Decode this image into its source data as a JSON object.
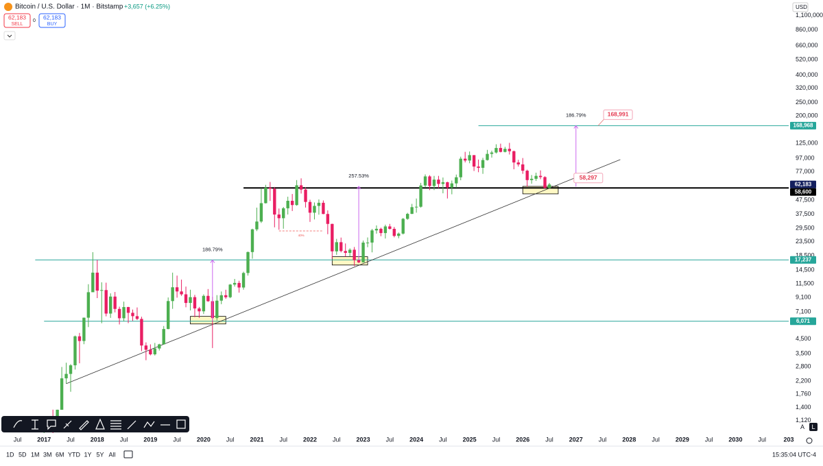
{
  "header": {
    "symbol": "Bitcoin / U.S. Dollar · 1M · Bitstamp",
    "change": "+3,657 (+6.25%)",
    "sell_price": "62,183",
    "sell": "SELL",
    "spread": "0",
    "buy_price": "62,183",
    "buy": "BUY",
    "currency": "USD"
  },
  "chart_data": {
    "type": "candlestick",
    "log_scale": true,
    "grid": false,
    "up_color": "#4caf50",
    "down_color": "#e91e63",
    "xlim": [
      "2016-06",
      "2031-01"
    ],
    "ylim": [
      906,
      1352000
    ],
    "xticks": [
      {
        "value": "2016-07",
        "label": "Jul"
      },
      {
        "value": "2017-01",
        "label": "2017"
      },
      {
        "value": "2017-07",
        "label": "Jul"
      },
      {
        "value": "2018-01",
        "label": "2018"
      },
      {
        "value": "2018-07",
        "label": "Jul"
      },
      {
        "value": "2019-01",
        "label": "2019"
      },
      {
        "value": "2019-07",
        "label": "Jul"
      },
      {
        "value": "2020-01",
        "label": "2020"
      },
      {
        "value": "2020-07",
        "label": "Jul"
      },
      {
        "value": "2021-01",
        "label": "2021"
      },
      {
        "value": "2021-07",
        "label": "Jul"
      },
      {
        "value": "2022-01",
        "label": "2022"
      },
      {
        "value": "2022-07",
        "label": "Jul"
      },
      {
        "value": "2023-01",
        "label": "2023"
      },
      {
        "value": "2023-07",
        "label": "Jul"
      },
      {
        "value": "2024-01",
        "label": "2024"
      },
      {
        "value": "2024-07",
        "label": "Jul"
      },
      {
        "value": "2025-01",
        "label": "2025"
      },
      {
        "value": "2025-07",
        "label": "Jul"
      },
      {
        "value": "2026-01",
        "label": "2026"
      },
      {
        "value": "2026-07",
        "label": "Jul"
      },
      {
        "value": "2027-01",
        "label": "2027"
      },
      {
        "value": "2027-07",
        "label": "Jul"
      },
      {
        "value": "2028-01",
        "label": "2028"
      },
      {
        "value": "2028-07",
        "label": "Jul"
      },
      {
        "value": "2029-01",
        "label": "2029"
      },
      {
        "value": "2029-07",
        "label": "Jul"
      },
      {
        "value": "2030-01",
        "label": "2030"
      },
      {
        "value": "2030-07",
        "label": "Jul"
      },
      {
        "value": "2031-01",
        "label": "203"
      }
    ],
    "yticks": [
      {
        "value": 1100000,
        "label": "1,100,000"
      },
      {
        "value": 860000,
        "label": "860,000"
      },
      {
        "value": 660000,
        "label": "660,000"
      },
      {
        "value": 520000,
        "label": "520,000"
      },
      {
        "value": 400000,
        "label": "400,000"
      },
      {
        "value": 320000,
        "label": "320,000"
      },
      {
        "value": 250000,
        "label": "250,000"
      },
      {
        "value": 200000,
        "label": "200,000"
      },
      {
        "value": 125000,
        "label": "125,000"
      },
      {
        "value": 97000,
        "label": "97,000"
      },
      {
        "value": 77000,
        "label": "77,000"
      },
      {
        "value": 47500,
        "label": "47,500"
      },
      {
        "value": 37500,
        "label": "37,500"
      },
      {
        "value": 29500,
        "label": "29,500"
      },
      {
        "value": 23500,
        "label": "23,500"
      },
      {
        "value": 18500,
        "label": "18,500"
      },
      {
        "value": 14500,
        "label": "14,500"
      },
      {
        "value": 11500,
        "label": "11,500"
      },
      {
        "value": 9100,
        "label": "9,100"
      },
      {
        "value": 7100,
        "label": "7,100"
      },
      {
        "value": 4500,
        "label": "4,500"
      },
      {
        "value": 3500,
        "label": "3,500"
      },
      {
        "value": 2800,
        "label": "2,800"
      },
      {
        "value": 2200,
        "label": "2,200"
      },
      {
        "value": 1760,
        "label": "1,760"
      },
      {
        "value": 1400,
        "label": "1,400"
      },
      {
        "value": 1120,
        "label": "1,120"
      }
    ],
    "x": [
      "2017-01",
      "2017-02",
      "2017-03",
      "2017-04",
      "2017-05",
      "2017-06",
      "2017-07",
      "2017-08",
      "2017-09",
      "2017-10",
      "2017-11",
      "2017-12",
      "2018-01",
      "2018-02",
      "2018-03",
      "2018-04",
      "2018-05",
      "2018-06",
      "2018-07",
      "2018-08",
      "2018-09",
      "2018-10",
      "2018-11",
      "2018-12",
      "2019-01",
      "2019-02",
      "2019-03",
      "2019-04",
      "2019-05",
      "2019-06",
      "2019-07",
      "2019-08",
      "2019-09",
      "2019-10",
      "2019-11",
      "2019-12",
      "2020-01",
      "2020-02",
      "2020-03",
      "2020-04",
      "2020-05",
      "2020-06",
      "2020-07",
      "2020-08",
      "2020-09",
      "2020-10",
      "2020-11",
      "2020-12",
      "2021-01",
      "2021-02",
      "2021-03",
      "2021-04",
      "2021-05",
      "2021-06",
      "2021-07",
      "2021-08",
      "2021-09",
      "2021-10",
      "2021-11",
      "2021-12",
      "2022-01",
      "2022-02",
      "2022-03",
      "2022-04",
      "2022-05",
      "2022-06",
      "2022-07",
      "2022-08",
      "2022-09",
      "2022-10",
      "2022-11",
      "2022-12",
      "2023-01",
      "2023-02",
      "2023-03",
      "2023-04",
      "2023-05",
      "2023-06",
      "2023-07",
      "2023-08",
      "2023-09",
      "2023-10",
      "2023-11",
      "2023-12",
      "2024-01",
      "2024-02",
      "2024-03",
      "2024-04",
      "2024-05",
      "2024-06",
      "2024-07",
      "2024-08",
      "2024-09",
      "2024-10",
      "2024-11",
      "2024-12",
      "2025-01",
      "2025-02",
      "2025-03",
      "2025-04",
      "2025-05",
      "2025-06",
      "2025-07",
      "2025-08",
      "2025-09",
      "2025-10",
      "2025-11",
      "2025-12",
      "2026-01",
      "2026-02",
      "2026-03",
      "2026-04",
      "2026-05",
      "2026-06",
      "2026-07"
    ],
    "open": [
      963,
      965,
      1190,
      1080,
      1348,
      2300,
      2480,
      2870,
      4700,
      4340,
      6450,
      9950,
      13880,
      10220,
      10320,
      6920,
      9240,
      7490,
      6390,
      7730,
      7010,
      6620,
      6320,
      4020,
      3740,
      3460,
      3820,
      4100,
      5320,
      8560,
      10820,
      10080,
      9600,
      8290,
      9150,
      7550,
      7190,
      9350,
      8540,
      6410,
      8620,
      9450,
      9140,
      11330,
      11650,
      10780,
      13800,
      19700,
      28980,
      33110,
      45240,
      58800,
      57720,
      37300,
      35040,
      41460,
      47100,
      43820,
      61300,
      57000,
      46200,
      38480,
      43190,
      45540,
      37640,
      31800,
      19940,
      23300,
      20050,
      19430,
      20490,
      17170,
      16540,
      23140,
      23150,
      28470,
      29250,
      27210,
      30470,
      29230,
      25930,
      26970,
      34650,
      37710,
      42280,
      42580,
      61130,
      71330,
      60610,
      67530,
      62750,
      64630,
      58970,
      63330,
      70290,
      96400,
      93430,
      102400,
      84350,
      82550,
      94200,
      104600,
      107100,
      115700,
      108200,
      114000,
      109500,
      90400,
      87500,
      78600,
      67000,
      68500,
      72000,
      70500,
      58526
    ],
    "high": [
      1150,
      1200,
      1350,
      1350,
      2790,
      3000,
      2930,
      4760,
      4980,
      6470,
      11400,
      19666,
      17200,
      11780,
      11700,
      9760,
      9990,
      7780,
      8480,
      7760,
      7410,
      7680,
      6560,
      4240,
      4100,
      4200,
      4140,
      5600,
      9100,
      13880,
      13200,
      12330,
      10950,
      10380,
      9510,
      7750,
      9590,
      10500,
      9200,
      9470,
      10070,
      10380,
      11450,
      12470,
      12090,
      14100,
      19860,
      29300,
      41950,
      58350,
      61790,
      64900,
      59600,
      41300,
      42400,
      50500,
      52900,
      67000,
      69000,
      59100,
      47990,
      45800,
      48200,
      47400,
      40000,
      31900,
      24650,
      25200,
      22800,
      20990,
      21470,
      18400,
      23960,
      25250,
      29200,
      31000,
      29820,
      31390,
      31800,
      30200,
      27480,
      35200,
      38400,
      44700,
      48970,
      63900,
      73800,
      72800,
      71950,
      71950,
      70000,
      65100,
      66500,
      73600,
      99800,
      108300,
      109000,
      102500,
      95000,
      97900,
      112000,
      110500,
      123200,
      124500,
      117900,
      126200,
      110600,
      94600,
      97500,
      80000,
      73000,
      76000,
      79000,
      71500,
      63800
    ],
    "low": [
      750,
      920,
      890,
      1060,
      1350,
      2100,
      1830,
      2670,
      2970,
      4110,
      5500,
      10900,
      9000,
      5870,
      6600,
      6430,
      7060,
      5750,
      6070,
      5880,
      6110,
      6200,
      3650,
      3130,
      3400,
      3390,
      3690,
      4080,
      5300,
      7500,
      9070,
      9350,
      7700,
      7300,
      6510,
      6430,
      6870,
      8450,
      3850,
      6150,
      8120,
      8900,
      8990,
      10950,
      9880,
      10390,
      13200,
      17600,
      28130,
      32300,
      45000,
      47000,
      30000,
      28800,
      29300,
      37300,
      39600,
      43300,
      53300,
      42000,
      32900,
      34300,
      37200,
      37500,
      26700,
      17600,
      18800,
      19600,
      18200,
      18200,
      15500,
      16300,
      16500,
      21400,
      19600,
      26950,
      25800,
      24800,
      28900,
      25300,
      24900,
      26550,
      34100,
      37600,
      38500,
      41900,
      59000,
      56500,
      56550,
      58400,
      53500,
      49000,
      52600,
      58900,
      66800,
      90500,
      89200,
      78200,
      76600,
      74500,
      93400,
      98200,
      105300,
      107300,
      107300,
      103500,
      80500,
      84400,
      74500,
      60000,
      63000,
      66000,
      68000,
      58300,
      58400
    ],
    "close": [
      965,
      1190,
      1080,
      1348,
      2300,
      2480,
      2870,
      4700,
      4340,
      6450,
      9950,
      13880,
      10220,
      10320,
      6920,
      9240,
      7490,
      6390,
      7730,
      7010,
      6620,
      6320,
      4020,
      3740,
      3460,
      3820,
      4100,
      5320,
      8560,
      10820,
      10080,
      9600,
      8290,
      9150,
      7550,
      7190,
      9350,
      8540,
      6410,
      8620,
      9450,
      9140,
      11330,
      11650,
      10780,
      13800,
      19700,
      28980,
      33110,
      45240,
      58800,
      57720,
      37300,
      35040,
      41460,
      47100,
      43820,
      61300,
      57000,
      46200,
      38480,
      43190,
      45540,
      37640,
      31800,
      19940,
      23300,
      20050,
      19430,
      20490,
      17170,
      16540,
      23140,
      23150,
      28470,
      29250,
      27210,
      30470,
      29230,
      25930,
      26970,
      34650,
      37710,
      42280,
      42580,
      61130,
      71330,
      60610,
      67530,
      62750,
      64630,
      58970,
      63330,
      70290,
      96400,
      93430,
      102400,
      84350,
      82550,
      94200,
      104600,
      107100,
      115700,
      108200,
      114000,
      109500,
      90400,
      87500,
      78600,
      67000,
      68500,
      72000,
      70500,
      58526,
      62183
    ],
    "levels": [
      {
        "value": 168968,
        "label": "168,968",
        "color": "#26a69a",
        "from": "2025-03",
        "line_width": 1
      },
      {
        "value": 17237,
        "label": "17,237",
        "color": "#26a69a",
        "from": "2016-11",
        "line_width": 1
      },
      {
        "value": 6071,
        "label": "6,071",
        "color": "#26a69a",
        "from": "2017-01",
        "line_width": 1
      },
      {
        "value": 58600,
        "label": "58,600",
        "color": "#000000",
        "from": "2020-10",
        "line_width": 2
      }
    ],
    "last_price": {
      "value": 62183,
      "label": "62,183",
      "color": "#131f5e"
    },
    "trendline": {
      "from": "2017-06",
      "from_value": 2100,
      "to": "2027-11",
      "to_value": 95000,
      "color": "#333333"
    },
    "measures": [
      {
        "label": "186.79%",
        "x": "2020-03",
        "from": 6100,
        "to": 17200
      },
      {
        "label": "257.53%",
        "x": "2022-12",
        "from": 17200,
        "to": 60200
      },
      {
        "label": "186.79%",
        "x": "2027-01",
        "from": 60000,
        "to": 168968
      }
    ],
    "measure_color": "#cc66ee",
    "boxes": [
      {
        "from": "2019-10",
        "to": "2020-06",
        "top": 6600,
        "bottom": 5800
      },
      {
        "from": "2022-06",
        "to": "2023-02",
        "top": 18200,
        "bottom": 15800
      },
      {
        "from": "2026-01",
        "to": "2026-09",
        "top": 60200,
        "bottom": 53000
      }
    ],
    "box_color": "#fff8c4",
    "callouts": [
      {
        "label": "168,991",
        "x": "2027-06",
        "value": 168991
      },
      {
        "label": "58,297",
        "x": "2027-01",
        "value": 58297
      }
    ],
    "dashed_note": {
      "label": "40%",
      "from": "2021-06",
      "to": "2022-04",
      "value": 28200,
      "color": "#ef5350"
    }
  },
  "footer": {
    "intervals": [
      "1D",
      "5D",
      "1M",
      "3M",
      "6M",
      "YTD",
      "1Y",
      "5Y",
      "All"
    ],
    "clock": "15:35:04 UTC-4",
    "scale_buttons": [
      "A",
      "L"
    ]
  }
}
